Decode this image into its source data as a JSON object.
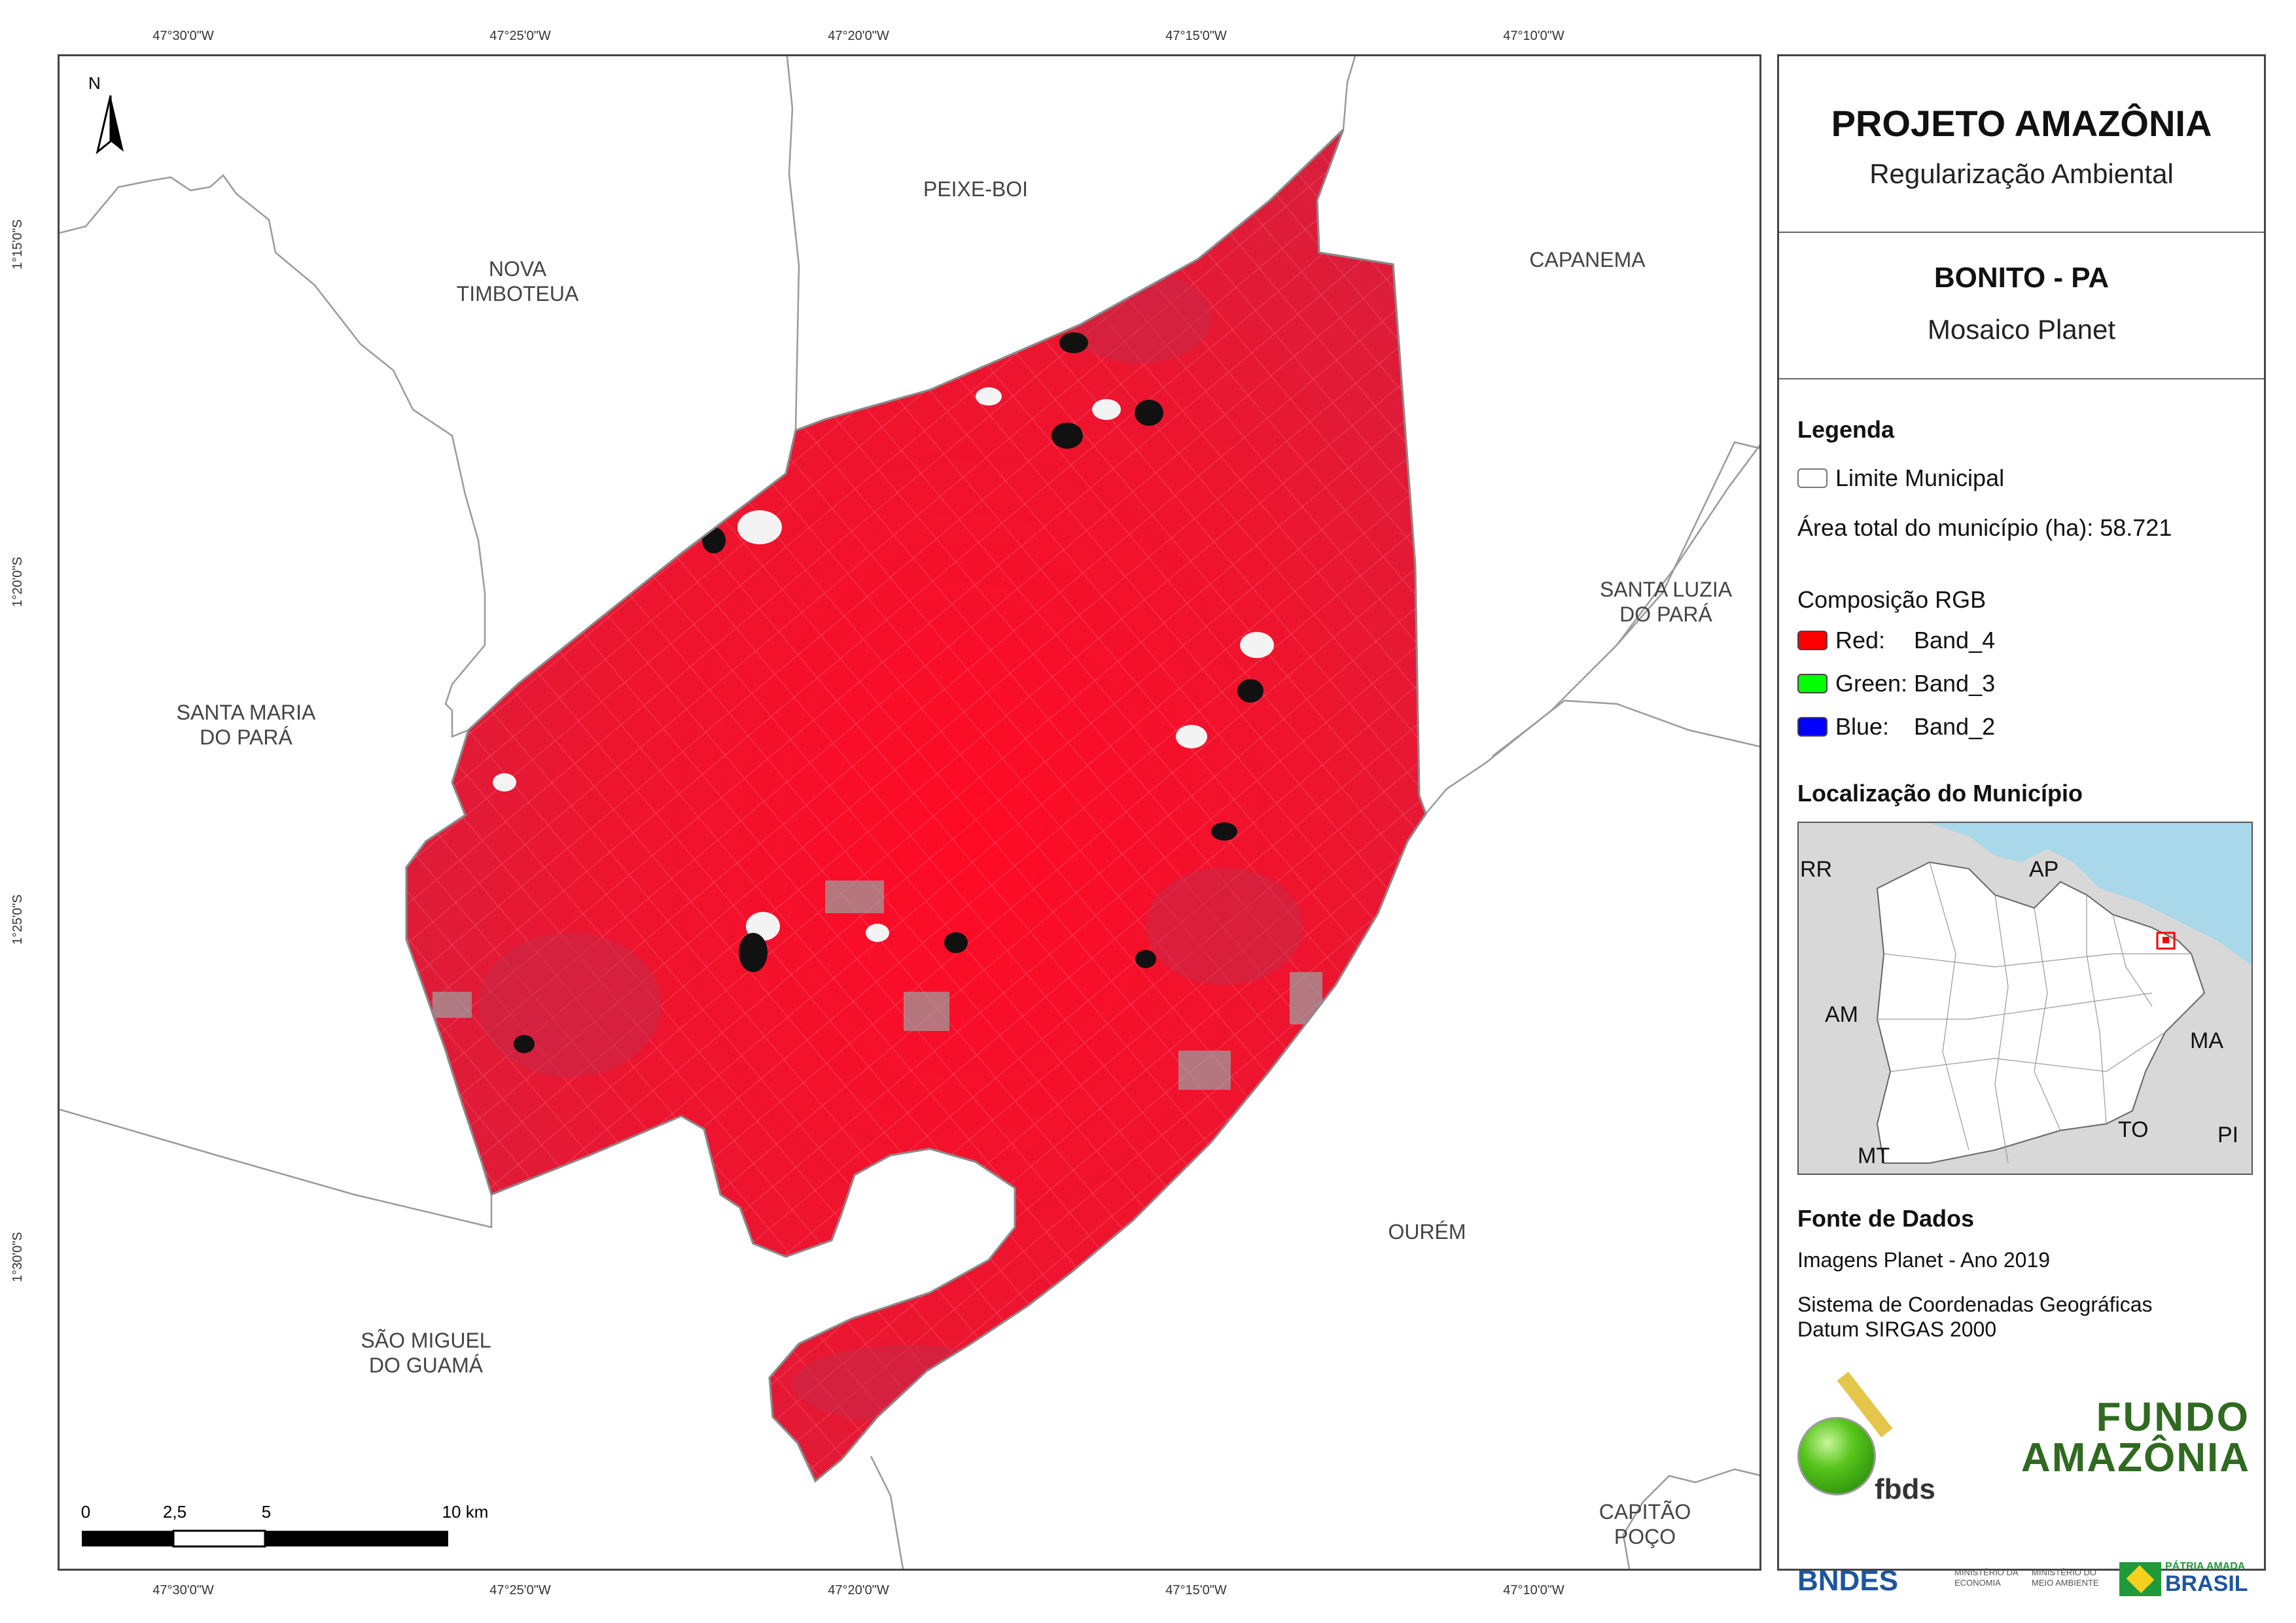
{
  "coordinates": {
    "longitudes": [
      "47°30'0\"W",
      "47°25'0\"W",
      "47°20'0\"W",
      "47°15'0\"W",
      "47°10'0\"W"
    ],
    "latitudes": [
      "1°15'0\"S",
      "1°20'0\"S",
      "1°25'0\"S",
      "1°30'0\"S"
    ]
  },
  "map": {
    "north_label": "N",
    "municipalities": {
      "peixe_boi": "PEIXE-BOI",
      "nova_timboteua_1": "NOVA",
      "nova_timboteua_2": "TIMBOTEUA",
      "capanema": "CAPANEMA",
      "santa_luzia_1": "SANTA LUZIA",
      "santa_luzia_2": "DO PARÁ",
      "santa_maria_1": "SANTA MARIA",
      "santa_maria_2": "DO PARÁ",
      "ourem": "OURÉM",
      "sao_miguel_1": "SÃO MIGUEL",
      "sao_miguel_2": "DO GUAMÁ",
      "capitao_poco_1": "CAPITÃO",
      "capitao_poco_2": "POÇO"
    },
    "scale": {
      "l0": "0",
      "l1": "2,5",
      "l2": "5",
      "l3": "10 km"
    },
    "colors": {
      "imagery_red": "#e8102a",
      "boundary": "#9a9a9a",
      "frame": "#444444"
    }
  },
  "panel": {
    "title": "PROJETO AMAZÔNIA",
    "subtitle": "Regularização Ambiental",
    "place": "BONITO - PA",
    "mosaic": "Mosaico Planet",
    "legend_title": "Legenda",
    "legend_boundary": "Limite Municipal",
    "area_label": "Área total do município (ha): 58.721",
    "rgb_title": "Composição RGB",
    "rgb": [
      {
        "channel": "Red:",
        "band": "Band_4",
        "color": "#ff0000"
      },
      {
        "channel": "Green:",
        "band": "Band_3",
        "color": "#00ff00"
      },
      {
        "channel": "Blue:",
        "band": "Band_2",
        "color": "#0000ff"
      }
    ],
    "location_title": "Localização do Município",
    "location_labels": {
      "rr": "RR",
      "ap": "AP",
      "am": "AM",
      "ma": "MA",
      "to": "TO",
      "mt": "MT",
      "pi": "PI"
    },
    "sources_title": "Fonte de Dados",
    "source_images": "Imagens Planet - Ano 2019",
    "source_crs_1": "Sistema de Coordenadas Geográficas",
    "source_crs_2": "Datum SIRGAS 2000",
    "logos": {
      "fbds": "fbds",
      "fundo_1": "FUNDO",
      "fundo_2": "AMAZÔNIA",
      "bndes": "BNDES",
      "ministerio_1": "MINISTÉRIO DA",
      "ministerio_1b": "ECONOMIA",
      "ministerio_2": "MINISTÉRIO DO",
      "ministerio_2b": "MEIO AMBIENTE",
      "patria": "PÁTRIA AMADA",
      "brasil": "BRASIL"
    }
  }
}
